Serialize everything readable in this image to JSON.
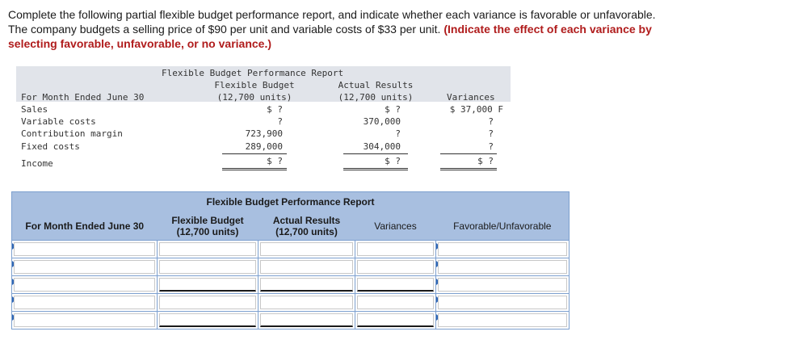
{
  "instructions": {
    "line1": "Complete the following partial flexible budget performance report, and indicate whether each variance is favorable or unfavorable.",
    "line2_plain": "The company budgets a selling price of $90 per unit and variable costs of $33 per unit.",
    "line2_emph": "(Indicate the effect of each variance by",
    "line3_emph": "selecting favorable, unfavorable, or no variance.)"
  },
  "given_report": {
    "title": "Flexible Budget Performance Report",
    "col_flex_1": "Flexible Budget",
    "col_flex_2": "(12,700 units)",
    "col_actual_1": "Actual Results",
    "col_actual_2": "(12,700 units)",
    "col_var": "Variances",
    "period": "For Month Ended June 30",
    "rows": [
      {
        "label": "Sales",
        "flex": "$ ?",
        "actual": "$ ?",
        "var": "$ 37,000 F"
      },
      {
        "label": "Variable costs",
        "flex": "?",
        "actual": "370,000",
        "var": "?"
      },
      {
        "label": "Contribution margin",
        "flex": "723,900",
        "actual": "?",
        "var": "?"
      },
      {
        "label": "Fixed costs",
        "flex": "289,000",
        "actual": "304,000",
        "var": "?"
      },
      {
        "label": "Income",
        "flex": "$ ?",
        "actual": "$ ?",
        "var": "$ ?"
      }
    ]
  },
  "answer_table": {
    "title": "Flexible Budget Performance Report",
    "period": "For Month Ended June 30",
    "col_flex_1": "Flexible Budget",
    "col_flex_2": "(12,700 units)",
    "col_actual_1": "Actual Results",
    "col_actual_2": "(12,700 units)",
    "col_var": "Variances",
    "col_fav": "Favorable/Unfavorable"
  }
}
